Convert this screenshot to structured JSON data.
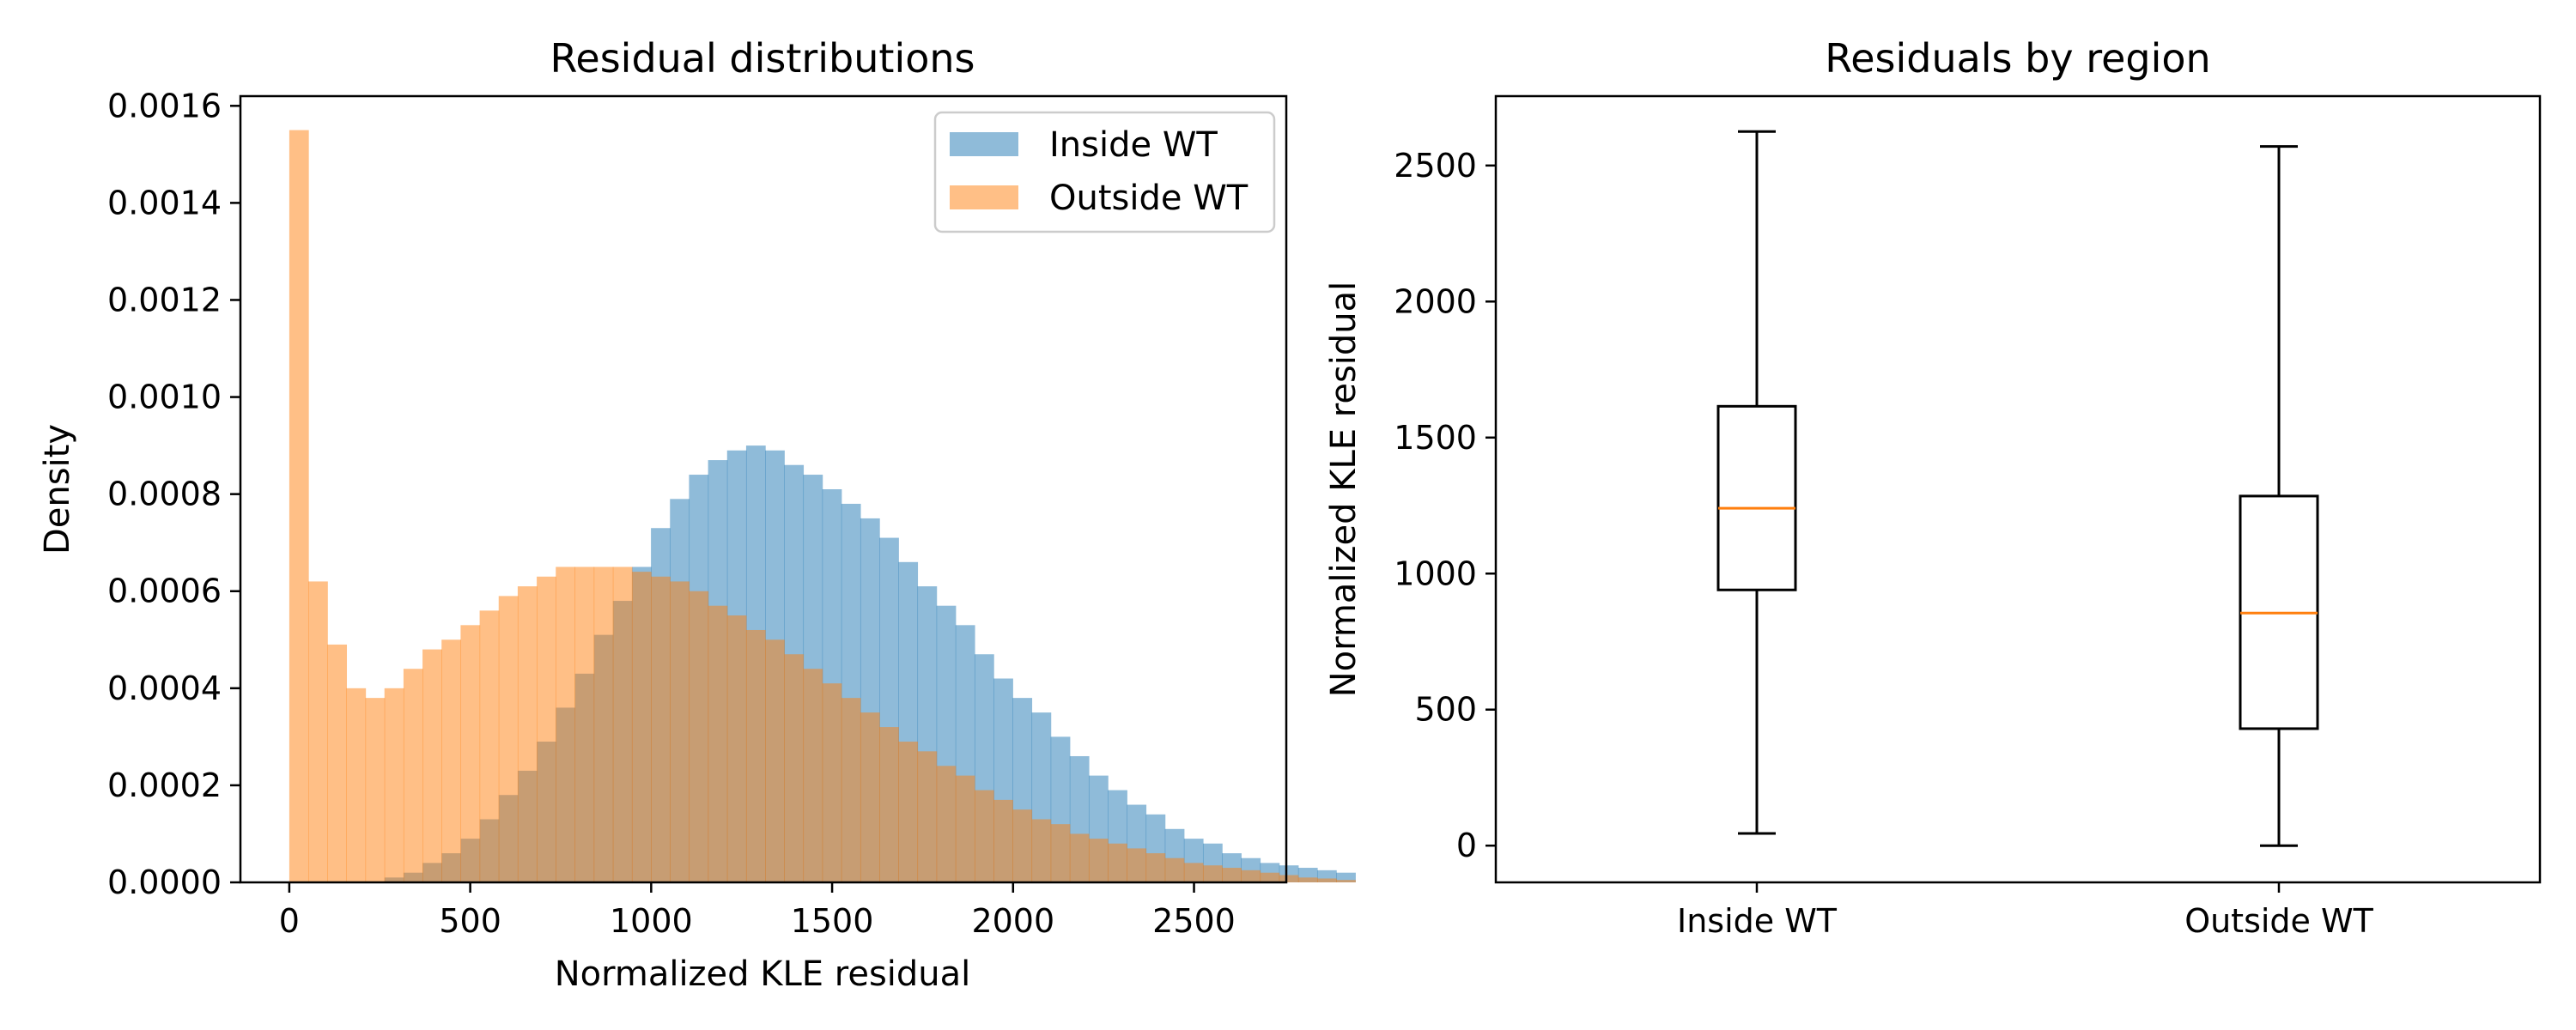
{
  "colors": {
    "inside": "#1f77b4",
    "outside": "#ff7f0e",
    "median": "#ff7f0e",
    "axis": "#000000"
  },
  "chart_data": [
    {
      "type": "histogram",
      "title": "Residual distributions",
      "xlabel": "Normalized KLE residual",
      "ylabel": "Density",
      "xlim": [
        -135,
        2755
      ],
      "ylim": [
        0,
        0.00162
      ],
      "xticks": [
        0,
        500,
        1000,
        1500,
        2000,
        2500
      ],
      "xtick_labels": [
        "0",
        "500",
        "1000",
        "1500",
        "2000",
        "2500"
      ],
      "yticks": [
        0,
        0.0002,
        0.0004,
        0.0006,
        0.0008,
        0.001,
        0.0012,
        0.0014,
        0.0016
      ],
      "ytick_labels": [
        "0.0000",
        "0.0002",
        "0.0004",
        "0.0006",
        "0.0008",
        "0.0010",
        "0.0012",
        "0.0014",
        "0.0016"
      ],
      "bin_start": 0,
      "bin_width": 52.6,
      "legend_position": "top-right",
      "series": [
        {
          "name": "Inside WT",
          "color": "#1f77b4",
          "alpha": 0.5,
          "values": [
            0,
            0,
            0,
            0,
            0,
            1e-05,
            2e-05,
            4e-05,
            6e-05,
            9e-05,
            0.00013,
            0.00018,
            0.00023,
            0.00029,
            0.00036,
            0.00043,
            0.00051,
            0.00058,
            0.00065,
            0.00073,
            0.00079,
            0.00084,
            0.00087,
            0.00089,
            0.0009,
            0.00089,
            0.00086,
            0.00084,
            0.00081,
            0.00078,
            0.00075,
            0.00071,
            0.00066,
            0.00061,
            0.00057,
            0.00053,
            0.00047,
            0.00042,
            0.00038,
            0.00035,
            0.0003,
            0.00026,
            0.00022,
            0.00019,
            0.00016,
            0.00014,
            0.00011,
            9e-05,
            8e-05,
            6e-05,
            5e-05,
            4e-05,
            3.5e-05,
            3e-05,
            2.5e-05,
            2e-05
          ]
        },
        {
          "name": "Outside WT",
          "color": "#ff7f0e",
          "alpha": 0.5,
          "values": [
            0.00155,
            0.00062,
            0.00049,
            0.0004,
            0.00038,
            0.0004,
            0.00044,
            0.00048,
            0.0005,
            0.00053,
            0.00056,
            0.00059,
            0.00061,
            0.00063,
            0.00065,
            0.00065,
            0.00065,
            0.00065,
            0.00064,
            0.00063,
            0.00062,
            0.0006,
            0.00057,
            0.00055,
            0.00052,
            0.0005,
            0.00047,
            0.00044,
            0.00041,
            0.00038,
            0.00035,
            0.00032,
            0.00029,
            0.00027,
            0.00024,
            0.00022,
            0.00019,
            0.00017,
            0.00015,
            0.00013,
            0.00012,
            0.0001,
            9e-05,
            8e-05,
            7e-05,
            6e-05,
            5e-05,
            4e-05,
            3.5e-05,
            3e-05,
            2.5e-05,
            2e-05,
            1.5e-05,
            1e-05,
            8e-06,
            5e-06
          ]
        }
      ]
    },
    {
      "type": "boxplot",
      "title": "Residuals by region",
      "ylabel": "Normalized KLE residual",
      "xlabel": "",
      "ylim": [
        -135,
        2755
      ],
      "yticks": [
        0,
        500,
        1000,
        1500,
        2000,
        2500
      ],
      "ytick_labels": [
        "0",
        "500",
        "1000",
        "1500",
        "2000",
        "2500"
      ],
      "categories": [
        "Inside WT",
        "Outside WT"
      ],
      "boxes": [
        {
          "name": "Inside WT",
          "whisker_low": 45,
          "q1": 940,
          "median": 1240,
          "q3": 1615,
          "whisker_high": 2625
        },
        {
          "name": "Outside WT",
          "whisker_low": 0,
          "q1": 430,
          "median": 855,
          "q3": 1285,
          "whisker_high": 2570
        }
      ]
    }
  ]
}
